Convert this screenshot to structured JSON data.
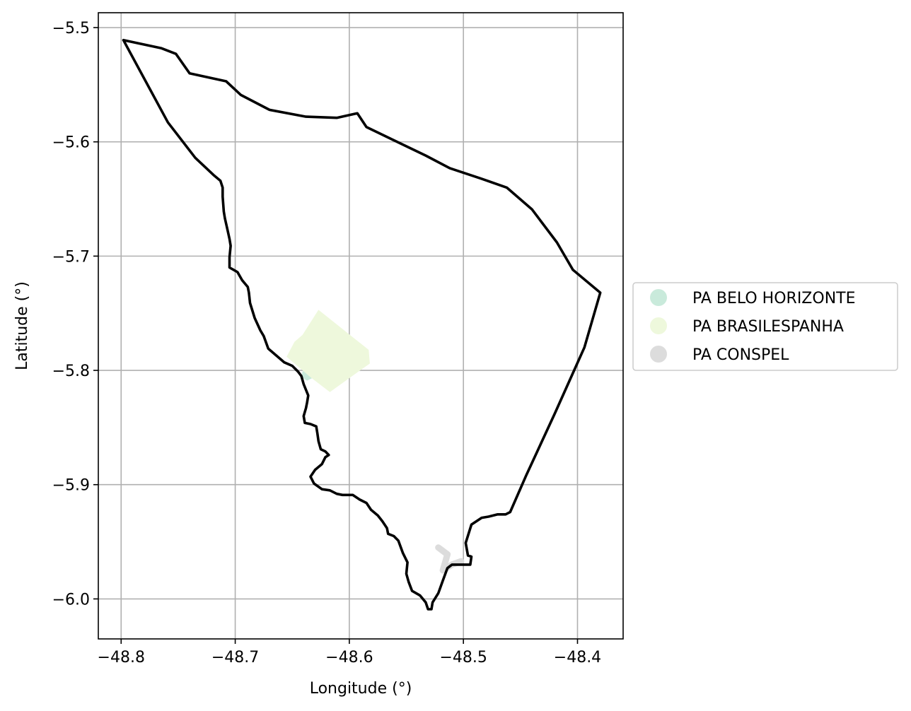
{
  "chart_data": {
    "type": "map",
    "xlabel": "Longitude (°)",
    "ylabel": "Latitude (°)",
    "xlim": [
      -48.82,
      -48.36
    ],
    "ylim": [
      -6.035,
      -5.487
    ],
    "grid": true,
    "legend_placement": "center-right-outside",
    "x_ticks": [
      {
        "value": -48.8,
        "label": "−48.8"
      },
      {
        "value": -48.7,
        "label": "−48.7"
      },
      {
        "value": -48.6,
        "label": "−48.6"
      },
      {
        "value": -48.5,
        "label": "−48.5"
      },
      {
        "value": -48.4,
        "label": "−48.4"
      }
    ],
    "y_ticks": [
      {
        "value": -5.5,
        "label": "−5.5"
      },
      {
        "value": -5.6,
        "label": "−5.6"
      },
      {
        "value": -5.7,
        "label": "−5.7"
      },
      {
        "value": -5.8,
        "label": "−5.8"
      },
      {
        "value": -5.9,
        "label": "−5.9"
      },
      {
        "value": -6.0,
        "label": "−6.0"
      }
    ],
    "boundary": {
      "color": "#000000",
      "points": [
        [
          -48.798,
          -5.511
        ],
        [
          -48.765,
          -5.518
        ],
        [
          -48.752,
          -5.523
        ],
        [
          -48.74,
          -5.54
        ],
        [
          -48.708,
          -5.547
        ],
        [
          -48.695,
          -5.559
        ],
        [
          -48.67,
          -5.572
        ],
        [
          -48.638,
          -5.578
        ],
        [
          -48.611,
          -5.579
        ],
        [
          -48.593,
          -5.575
        ],
        [
          -48.585,
          -5.587
        ],
        [
          -48.558,
          -5.6
        ],
        [
          -48.533,
          -5.612
        ],
        [
          -48.512,
          -5.623
        ],
        [
          -48.485,
          -5.632
        ],
        [
          -48.462,
          -5.64
        ],
        [
          -48.44,
          -5.659
        ],
        [
          -48.418,
          -5.688
        ],
        [
          -48.404,
          -5.712
        ],
        [
          -48.38,
          -5.732
        ],
        [
          -48.394,
          -5.78
        ],
        [
          -48.42,
          -5.838
        ],
        [
          -48.445,
          -5.892
        ],
        [
          -48.459,
          -5.924
        ],
        [
          -48.463,
          -5.926
        ],
        [
          -48.47,
          -5.926
        ],
        [
          -48.478,
          -5.928
        ],
        [
          -48.484,
          -5.929
        ],
        [
          -48.493,
          -5.935
        ],
        [
          -48.498,
          -5.951
        ],
        [
          -48.496,
          -5.962
        ],
        [
          -48.493,
          -5.963
        ],
        [
          -48.494,
          -5.97
        ],
        [
          -48.5,
          -5.97
        ],
        [
          -48.51,
          -5.97
        ],
        [
          -48.514,
          -5.973
        ],
        [
          -48.518,
          -5.984
        ],
        [
          -48.522,
          -5.995
        ],
        [
          -48.527,
          -6.003
        ],
        [
          -48.528,
          -6.009
        ],
        [
          -48.531,
          -6.009
        ],
        [
          -48.533,
          -6.003
        ],
        [
          -48.538,
          -5.997
        ],
        [
          -48.545,
          -5.993
        ],
        [
          -48.548,
          -5.985
        ],
        [
          -48.55,
          -5.978
        ],
        [
          -48.549,
          -5.968
        ],
        [
          -48.553,
          -5.96
        ],
        [
          -48.557,
          -5.949
        ],
        [
          -48.561,
          -5.945
        ],
        [
          -48.566,
          -5.943
        ],
        [
          -48.567,
          -5.938
        ],
        [
          -48.571,
          -5.932
        ],
        [
          -48.575,
          -5.927
        ],
        [
          -48.581,
          -5.922
        ],
        [
          -48.585,
          -5.916
        ],
        [
          -48.591,
          -5.913
        ],
        [
          -48.597,
          -5.909
        ],
        [
          -48.606,
          -5.909
        ],
        [
          -48.611,
          -5.908
        ],
        [
          -48.617,
          -5.905
        ],
        [
          -48.624,
          -5.904
        ],
        [
          -48.631,
          -5.899
        ],
        [
          -48.633,
          -5.895
        ],
        [
          -48.634,
          -5.893
        ],
        [
          -48.63,
          -5.887
        ],
        [
          -48.624,
          -5.882
        ],
        [
          -48.621,
          -5.876
        ],
        [
          -48.618,
          -5.874
        ],
        [
          -48.621,
          -5.871
        ],
        [
          -48.625,
          -5.869
        ],
        [
          -48.627,
          -5.862
        ],
        [
          -48.628,
          -5.855
        ],
        [
          -48.629,
          -5.849
        ],
        [
          -48.634,
          -5.847
        ],
        [
          -48.639,
          -5.846
        ],
        [
          -48.64,
          -5.84
        ],
        [
          -48.638,
          -5.833
        ],
        [
          -48.637,
          -5.828
        ],
        [
          -48.636,
          -5.822
        ],
        [
          -48.64,
          -5.812
        ],
        [
          -48.642,
          -5.805
        ],
        [
          -48.645,
          -5.801
        ],
        [
          -48.65,
          -5.796
        ],
        [
          -48.657,
          -5.793
        ],
        [
          -48.664,
          -5.787
        ],
        [
          -48.671,
          -5.781
        ],
        [
          -48.675,
          -5.77
        ],
        [
          -48.678,
          -5.765
        ],
        [
          -48.683,
          -5.754
        ],
        [
          -48.687,
          -5.741
        ],
        [
          -48.688,
          -5.732
        ],
        [
          -48.689,
          -5.727
        ],
        [
          -48.694,
          -5.721
        ],
        [
          -48.698,
          -5.714
        ],
        [
          -48.705,
          -5.71
        ],
        [
          -48.705,
          -5.701
        ],
        [
          -48.704,
          -5.691
        ],
        [
          -48.705,
          -5.685
        ],
        [
          -48.707,
          -5.676
        ],
        [
          -48.709,
          -5.667
        ],
        [
          -48.71,
          -5.661
        ],
        [
          -48.711,
          -5.648
        ],
        [
          -48.711,
          -5.64
        ],
        [
          -48.713,
          -5.634
        ],
        [
          -48.719,
          -5.629
        ],
        [
          -48.735,
          -5.614
        ],
        [
          -48.759,
          -5.583
        ],
        [
          -48.798,
          -5.511
        ]
      ]
    },
    "regions": [
      {
        "name": "PA BELO HORIZONTE",
        "color": "#c9eadb",
        "polygon": [
          [
            -48.641,
            -5.801
          ],
          [
            -48.633,
            -5.797
          ],
          [
            -48.627,
            -5.8
          ],
          [
            -48.631,
            -5.806
          ],
          [
            -48.637,
            -5.809
          ],
          [
            -48.642,
            -5.806
          ]
        ]
      },
      {
        "name": "PA BRASILESPANHA",
        "color": "#eef8dc",
        "polygon": [
          [
            -48.627,
            -5.747
          ],
          [
            -48.583,
            -5.782
          ],
          [
            -48.582,
            -5.794
          ],
          [
            -48.592,
            -5.801
          ],
          [
            -48.617,
            -5.819
          ],
          [
            -48.634,
            -5.806
          ],
          [
            -48.655,
            -5.788
          ],
          [
            -48.648,
            -5.775
          ],
          [
            -48.641,
            -5.769
          ]
        ]
      },
      {
        "name": "PA CONSPEL",
        "color": "#dcdcdc",
        "polyline": [
          [
            -48.522,
            -5.955
          ],
          [
            -48.514,
            -5.961
          ],
          [
            -48.516,
            -5.968
          ],
          [
            -48.518,
            -5.975
          ],
          [
            -48.51,
            -5.97
          ],
          [
            -48.502,
            -5.967
          ]
        ]
      }
    ],
    "legend": [
      {
        "name": "PA BELO HORIZONTE",
        "color": "#c9eadb"
      },
      {
        "name": "PA BRASILESPANHA",
        "color": "#eef8dc"
      },
      {
        "name": "PA CONSPEL",
        "color": "#dcdcdc"
      }
    ]
  }
}
